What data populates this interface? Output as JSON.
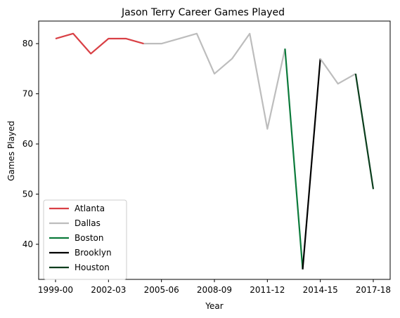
{
  "chart_data": {
    "type": "line",
    "title": "Jason Terry Career Games Played",
    "xlabel": "Year",
    "ylabel": "Games Played",
    "categories": [
      "1999-00",
      "2000-01",
      "2001-02",
      "2002-03",
      "2003-04",
      "2004-05",
      "2005-06",
      "2006-07",
      "2007-08",
      "2008-09",
      "2009-10",
      "2010-11",
      "2011-12",
      "2012-13",
      "2013-14",
      "2014-15",
      "2015-16",
      "2016-17",
      "2017-18"
    ],
    "x_ticks": [
      "1999-00",
      "2002-03",
      "2005-06",
      "2008-09",
      "2011-12",
      "2014-15",
      "2017-18"
    ],
    "y_ticks": [
      40,
      50,
      60,
      70,
      80
    ],
    "ylim": [
      33,
      84.5
    ],
    "grid": false,
    "legend_position": "lower-left",
    "series": [
      {
        "name": "Atlanta",
        "color": "#d94045",
        "x": [
          "1999-00",
          "2000-01",
          "2001-02",
          "2002-03",
          "2003-04",
          "2004-05"
        ],
        "values": [
          81,
          82,
          78,
          81,
          81,
          80
        ]
      },
      {
        "name": "Dallas",
        "color": "#bdbdbd",
        "x": [
          "2004-05",
          "2005-06",
          "2006-07",
          "2007-08",
          "2008-09",
          "2009-10",
          "2010-11",
          "2011-12",
          "2012-13"
        ],
        "values": [
          80,
          80,
          81,
          82,
          74,
          77,
          82,
          63,
          79
        ]
      },
      {
        "name": "Boston",
        "color": "#0b7a3a",
        "x": [
          "2012-13",
          "2013-14"
        ],
        "values": [
          79,
          35
        ]
      },
      {
        "name": "Brooklyn",
        "color": "#000000",
        "x": [
          "2013-14",
          "2014-15"
        ],
        "values": [
          35,
          77
        ]
      },
      {
        "name": "Dallas",
        "color": "#bdbdbd",
        "x": [
          "2014-15",
          "2015-16",
          "2016-17"
        ],
        "values": [
          77,
          72,
          74
        ],
        "in_legend": false
      },
      {
        "name": "Houston",
        "color": "#0a3d1c",
        "x": [
          "2016-17",
          "2017-18"
        ],
        "values": [
          74,
          51
        ]
      }
    ]
  }
}
